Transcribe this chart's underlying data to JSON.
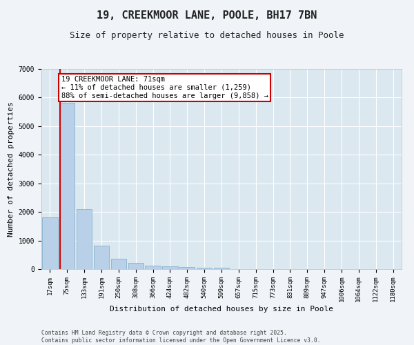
{
  "title": "19, CREEKMOOR LANE, POOLE, BH17 7BN",
  "subtitle": "Size of property relative to detached houses in Poole",
  "xlabel": "Distribution of detached houses by size in Poole",
  "ylabel": "Number of detached properties",
  "categories": [
    "17sqm",
    "75sqm",
    "133sqm",
    "191sqm",
    "250sqm",
    "308sqm",
    "366sqm",
    "424sqm",
    "482sqm",
    "540sqm",
    "599sqm",
    "657sqm",
    "715sqm",
    "773sqm",
    "831sqm",
    "889sqm",
    "947sqm",
    "1006sqm",
    "1064sqm",
    "1122sqm",
    "1180sqm"
  ],
  "values": [
    1800,
    5820,
    2090,
    820,
    370,
    210,
    130,
    100,
    80,
    60,
    50,
    0,
    0,
    0,
    0,
    0,
    0,
    0,
    0,
    0,
    0
  ],
  "bar_color": "#b8d0e8",
  "bar_edge_color": "#7aaac8",
  "vline_color": "#cc0000",
  "annotation_text": "19 CREEKMOOR LANE: 71sqm\n← 11% of detached houses are smaller (1,259)\n88% of semi-detached houses are larger (9,858) →",
  "annotation_box_color": "#cc0000",
  "ylim": [
    0,
    7000
  ],
  "yticks": [
    0,
    1000,
    2000,
    3000,
    4000,
    5000,
    6000,
    7000
  ],
  "background_color": "#dce8f0",
  "grid_color": "#ffffff",
  "fig_background": "#f0f4f8",
  "footer": "Contains HM Land Registry data © Crown copyright and database right 2025.\nContains public sector information licensed under the Open Government Licence v3.0.",
  "title_fontsize": 11,
  "subtitle_fontsize": 9,
  "axis_label_fontsize": 8,
  "tick_fontsize": 6.5,
  "annotation_fontsize": 7.5
}
